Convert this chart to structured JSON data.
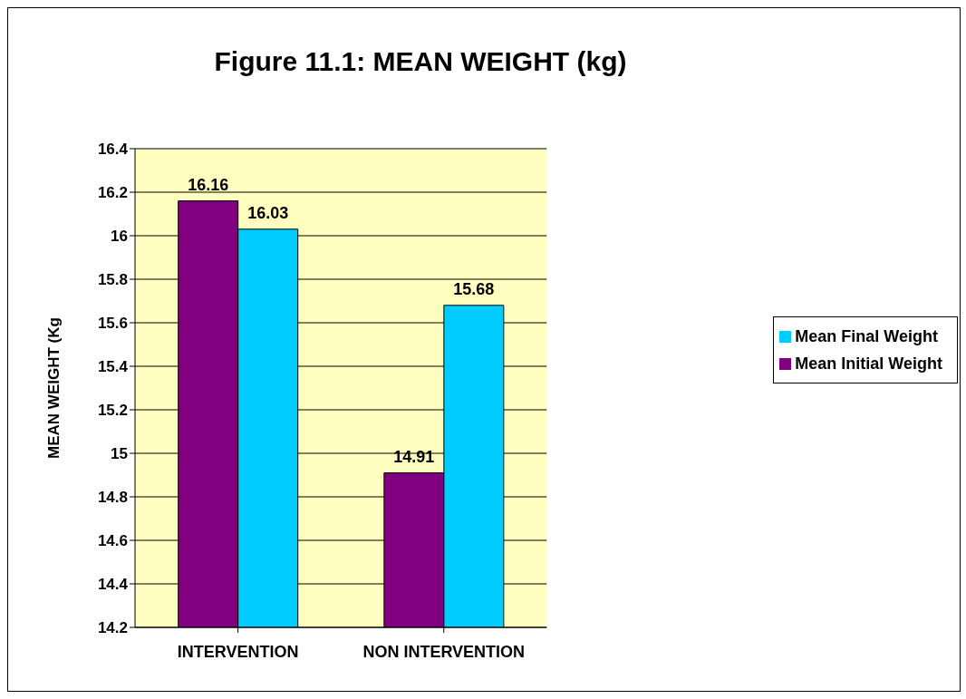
{
  "chart_data": {
    "type": "bar",
    "title": "Figure 11.1: MEAN WEIGHT (kg)",
    "ylabel": "MEAN WEIGHT (Kg",
    "categories": [
      "INTERVENTION",
      "NON INTERVENTION"
    ],
    "series": [
      {
        "name": "Mean Initial Weight",
        "color": "#800080",
        "values": [
          16.16,
          14.91
        ]
      },
      {
        "name": "Mean Final Weight",
        "color": "#00ccff",
        "values": [
          16.03,
          15.68
        ]
      }
    ],
    "ylim": [
      14.2,
      16.4
    ],
    "yticks": [
      14.2,
      14.4,
      14.6,
      14.8,
      15,
      15.2,
      15.4,
      15.6,
      15.8,
      16,
      16.2,
      16.4
    ],
    "grid": "y",
    "legend": "right",
    "data_labels": true
  }
}
